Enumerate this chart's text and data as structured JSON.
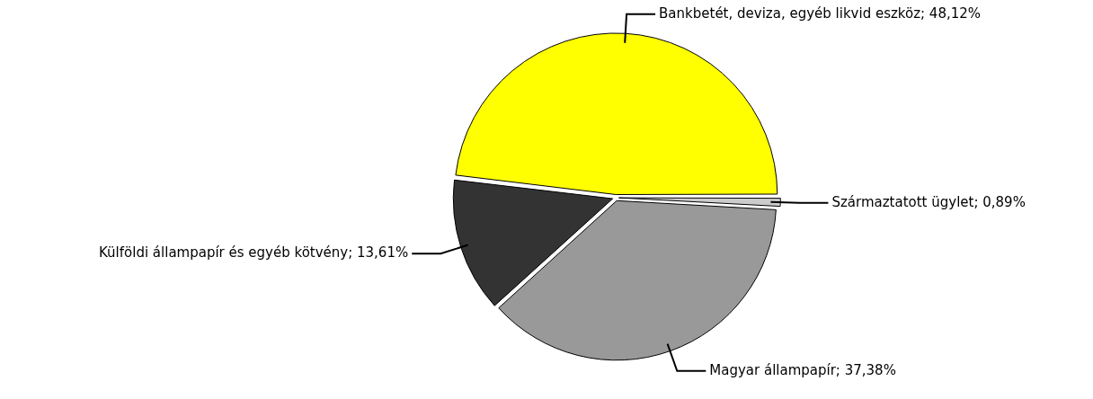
{
  "chart_data": {
    "type": "pie",
    "categories": [
      "Származtatott ügylet",
      "Magyar állampapír",
      "Külföldi állampapír és egyéb kötvény",
      "Bankbetét, deviza, egyéb likvid eszköz"
    ],
    "values": [
      0.89,
      37.38,
      13.61,
      48.12
    ],
    "value_labels": [
      "0,89%",
      "37,38%",
      "13,61%",
      "48,12%"
    ],
    "colors": [
      "#cccccc",
      "#999999",
      "#333333",
      "#ffff00"
    ],
    "legend": false
  }
}
